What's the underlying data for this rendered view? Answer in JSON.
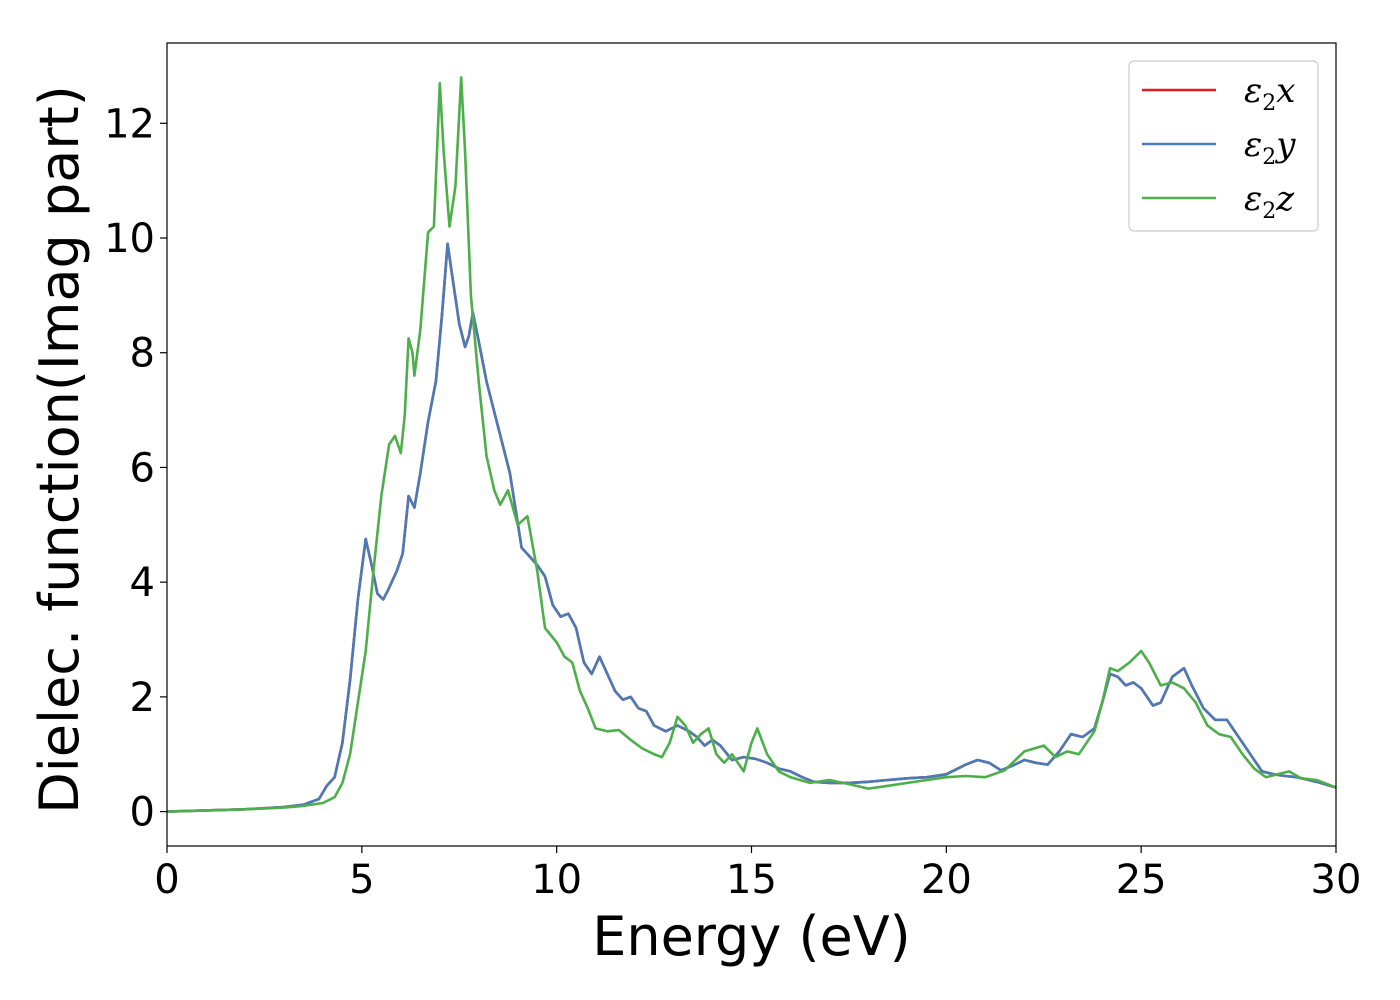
{
  "chart_data": {
    "type": "line",
    "xlabel": "Energy (eV)",
    "ylabel": "Dielec. function(Imag part)",
    "xlim": [
      0,
      30
    ],
    "ylim": [
      -0.6,
      13.4
    ],
    "xticks": [
      0,
      5,
      10,
      15,
      20,
      25,
      30
    ],
    "yticks": [
      0,
      2,
      4,
      6,
      8,
      10,
      12
    ],
    "grid": false,
    "legend_position": "top-right",
    "series": [
      {
        "name": "ε2x",
        "legend": {
          "symbol": "ε",
          "sub": "2",
          "var": "x"
        },
        "color": "#e41a1c",
        "points": [
          [
            0,
            0.0
          ],
          [
            1,
            0.02
          ],
          [
            2,
            0.04
          ],
          [
            3,
            0.08
          ],
          [
            3.5,
            0.12
          ],
          [
            3.9,
            0.22
          ],
          [
            4.1,
            0.45
          ],
          [
            4.3,
            0.6
          ],
          [
            4.5,
            1.2
          ],
          [
            4.7,
            2.3
          ],
          [
            4.9,
            3.7
          ],
          [
            5.1,
            4.75
          ],
          [
            5.25,
            4.3
          ],
          [
            5.4,
            3.8
          ],
          [
            5.55,
            3.7
          ],
          [
            5.7,
            3.9
          ],
          [
            5.9,
            4.2
          ],
          [
            6.05,
            4.5
          ],
          [
            6.2,
            5.5
          ],
          [
            6.35,
            5.3
          ],
          [
            6.5,
            5.9
          ],
          [
            6.7,
            6.8
          ],
          [
            6.9,
            7.5
          ],
          [
            7.05,
            8.6
          ],
          [
            7.2,
            9.9
          ],
          [
            7.35,
            9.2
          ],
          [
            7.5,
            8.5
          ],
          [
            7.65,
            8.1
          ],
          [
            7.75,
            8.3
          ],
          [
            7.85,
            8.7
          ],
          [
            8.0,
            8.2
          ],
          [
            8.2,
            7.5
          ],
          [
            8.5,
            6.7
          ],
          [
            8.8,
            5.9
          ],
          [
            9.1,
            4.6
          ],
          [
            9.3,
            4.45
          ],
          [
            9.5,
            4.3
          ],
          [
            9.7,
            4.1
          ],
          [
            9.9,
            3.6
          ],
          [
            10.1,
            3.4
          ],
          [
            10.3,
            3.45
          ],
          [
            10.5,
            3.2
          ],
          [
            10.7,
            2.6
          ],
          [
            10.9,
            2.4
          ],
          [
            11.1,
            2.7
          ],
          [
            11.3,
            2.4
          ],
          [
            11.5,
            2.1
          ],
          [
            11.7,
            1.95
          ],
          [
            11.9,
            2.0
          ],
          [
            12.1,
            1.8
          ],
          [
            12.3,
            1.75
          ],
          [
            12.5,
            1.5
          ],
          [
            12.8,
            1.4
          ],
          [
            13.1,
            1.5
          ],
          [
            13.4,
            1.4
          ],
          [
            13.6,
            1.3
          ],
          [
            13.8,
            1.15
          ],
          [
            14.0,
            1.25
          ],
          [
            14.2,
            1.15
          ],
          [
            14.5,
            0.9
          ],
          [
            14.8,
            0.95
          ],
          [
            15.1,
            0.92
          ],
          [
            15.4,
            0.85
          ],
          [
            15.7,
            0.75
          ],
          [
            16.0,
            0.7
          ],
          [
            16.3,
            0.6
          ],
          [
            16.6,
            0.52
          ],
          [
            17.0,
            0.5
          ],
          [
            17.5,
            0.5
          ],
          [
            18.0,
            0.52
          ],
          [
            18.5,
            0.55
          ],
          [
            19.0,
            0.58
          ],
          [
            19.5,
            0.6
          ],
          [
            20.0,
            0.65
          ],
          [
            20.5,
            0.82
          ],
          [
            20.8,
            0.9
          ],
          [
            21.1,
            0.85
          ],
          [
            21.4,
            0.72
          ],
          [
            21.7,
            0.8
          ],
          [
            22.0,
            0.9
          ],
          [
            22.3,
            0.85
          ],
          [
            22.6,
            0.82
          ],
          [
            22.9,
            1.05
          ],
          [
            23.2,
            1.35
          ],
          [
            23.5,
            1.3
          ],
          [
            23.8,
            1.45
          ],
          [
            24.0,
            1.9
          ],
          [
            24.2,
            2.4
          ],
          [
            24.4,
            2.35
          ],
          [
            24.6,
            2.2
          ],
          [
            24.8,
            2.25
          ],
          [
            25.0,
            2.15
          ],
          [
            25.3,
            1.85
          ],
          [
            25.5,
            1.9
          ],
          [
            25.8,
            2.35
          ],
          [
            26.1,
            2.5
          ],
          [
            26.3,
            2.2
          ],
          [
            26.6,
            1.8
          ],
          [
            26.9,
            1.6
          ],
          [
            27.2,
            1.6
          ],
          [
            27.5,
            1.3
          ],
          [
            27.8,
            1.0
          ],
          [
            28.1,
            0.7
          ],
          [
            28.4,
            0.65
          ],
          [
            28.7,
            0.62
          ],
          [
            29.0,
            0.6
          ],
          [
            29.5,
            0.52
          ],
          [
            30.0,
            0.42
          ]
        ]
      },
      {
        "name": "ε2y",
        "legend": {
          "symbol": "ε",
          "sub": "2",
          "var": "y"
        },
        "color": "#4a7bb7",
        "points": [
          [
            0,
            0.0
          ],
          [
            1,
            0.02
          ],
          [
            2,
            0.04
          ],
          [
            3,
            0.08
          ],
          [
            3.5,
            0.12
          ],
          [
            3.9,
            0.22
          ],
          [
            4.1,
            0.45
          ],
          [
            4.3,
            0.6
          ],
          [
            4.5,
            1.2
          ],
          [
            4.7,
            2.3
          ],
          [
            4.9,
            3.7
          ],
          [
            5.1,
            4.75
          ],
          [
            5.25,
            4.3
          ],
          [
            5.4,
            3.8
          ],
          [
            5.55,
            3.7
          ],
          [
            5.7,
            3.9
          ],
          [
            5.9,
            4.2
          ],
          [
            6.05,
            4.5
          ],
          [
            6.2,
            5.5
          ],
          [
            6.35,
            5.3
          ],
          [
            6.5,
            5.9
          ],
          [
            6.7,
            6.8
          ],
          [
            6.9,
            7.5
          ],
          [
            7.05,
            8.6
          ],
          [
            7.2,
            9.9
          ],
          [
            7.35,
            9.2
          ],
          [
            7.5,
            8.5
          ],
          [
            7.65,
            8.1
          ],
          [
            7.75,
            8.3
          ],
          [
            7.85,
            8.7
          ],
          [
            8.0,
            8.2
          ],
          [
            8.2,
            7.5
          ],
          [
            8.5,
            6.7
          ],
          [
            8.8,
            5.9
          ],
          [
            9.1,
            4.6
          ],
          [
            9.3,
            4.45
          ],
          [
            9.5,
            4.3
          ],
          [
            9.7,
            4.1
          ],
          [
            9.9,
            3.6
          ],
          [
            10.1,
            3.4
          ],
          [
            10.3,
            3.45
          ],
          [
            10.5,
            3.2
          ],
          [
            10.7,
            2.6
          ],
          [
            10.9,
            2.4
          ],
          [
            11.1,
            2.7
          ],
          [
            11.3,
            2.4
          ],
          [
            11.5,
            2.1
          ],
          [
            11.7,
            1.95
          ],
          [
            11.9,
            2.0
          ],
          [
            12.1,
            1.8
          ],
          [
            12.3,
            1.75
          ],
          [
            12.5,
            1.5
          ],
          [
            12.8,
            1.4
          ],
          [
            13.1,
            1.5
          ],
          [
            13.4,
            1.4
          ],
          [
            13.6,
            1.3
          ],
          [
            13.8,
            1.15
          ],
          [
            14.0,
            1.25
          ],
          [
            14.2,
            1.15
          ],
          [
            14.5,
            0.9
          ],
          [
            14.8,
            0.95
          ],
          [
            15.1,
            0.92
          ],
          [
            15.4,
            0.85
          ],
          [
            15.7,
            0.75
          ],
          [
            16.0,
            0.7
          ],
          [
            16.3,
            0.6
          ],
          [
            16.6,
            0.52
          ],
          [
            17.0,
            0.5
          ],
          [
            17.5,
            0.5
          ],
          [
            18.0,
            0.52
          ],
          [
            18.5,
            0.55
          ],
          [
            19.0,
            0.58
          ],
          [
            19.5,
            0.6
          ],
          [
            20.0,
            0.65
          ],
          [
            20.5,
            0.82
          ],
          [
            20.8,
            0.9
          ],
          [
            21.1,
            0.85
          ],
          [
            21.4,
            0.72
          ],
          [
            21.7,
            0.8
          ],
          [
            22.0,
            0.9
          ],
          [
            22.3,
            0.85
          ],
          [
            22.6,
            0.82
          ],
          [
            22.9,
            1.05
          ],
          [
            23.2,
            1.35
          ],
          [
            23.5,
            1.3
          ],
          [
            23.8,
            1.45
          ],
          [
            24.0,
            1.9
          ],
          [
            24.2,
            2.4
          ],
          [
            24.4,
            2.35
          ],
          [
            24.6,
            2.2
          ],
          [
            24.8,
            2.25
          ],
          [
            25.0,
            2.15
          ],
          [
            25.3,
            1.85
          ],
          [
            25.5,
            1.9
          ],
          [
            25.8,
            2.35
          ],
          [
            26.1,
            2.5
          ],
          [
            26.3,
            2.2
          ],
          [
            26.6,
            1.8
          ],
          [
            26.9,
            1.6
          ],
          [
            27.2,
            1.6
          ],
          [
            27.5,
            1.3
          ],
          [
            27.8,
            1.0
          ],
          [
            28.1,
            0.7
          ],
          [
            28.4,
            0.65
          ],
          [
            28.7,
            0.62
          ],
          [
            29.0,
            0.6
          ],
          [
            29.5,
            0.52
          ],
          [
            30.0,
            0.42
          ]
        ]
      },
      {
        "name": "ε2z",
        "legend": {
          "symbol": "ε",
          "sub": "2",
          "var": "z"
        },
        "color": "#4daf4a",
        "points": [
          [
            0,
            0.0
          ],
          [
            1,
            0.02
          ],
          [
            2,
            0.04
          ],
          [
            3,
            0.07
          ],
          [
            3.5,
            0.1
          ],
          [
            4.0,
            0.15
          ],
          [
            4.3,
            0.25
          ],
          [
            4.5,
            0.5
          ],
          [
            4.7,
            1.0
          ],
          [
            4.9,
            1.9
          ],
          [
            5.1,
            2.8
          ],
          [
            5.3,
            4.2
          ],
          [
            5.5,
            5.5
          ],
          [
            5.7,
            6.4
          ],
          [
            5.85,
            6.55
          ],
          [
            6.0,
            6.25
          ],
          [
            6.1,
            6.9
          ],
          [
            6.2,
            8.25
          ],
          [
            6.3,
            8.0
          ],
          [
            6.35,
            7.6
          ],
          [
            6.5,
            8.4
          ],
          [
            6.7,
            10.1
          ],
          [
            6.85,
            10.2
          ],
          [
            7.0,
            12.7
          ],
          [
            7.1,
            11.5
          ],
          [
            7.25,
            10.2
          ],
          [
            7.4,
            10.9
          ],
          [
            7.55,
            12.8
          ],
          [
            7.65,
            11.5
          ],
          [
            7.8,
            9.0
          ],
          [
            8.0,
            7.5
          ],
          [
            8.2,
            6.2
          ],
          [
            8.4,
            5.6
          ],
          [
            8.55,
            5.35
          ],
          [
            8.75,
            5.6
          ],
          [
            9.0,
            5.0
          ],
          [
            9.25,
            5.15
          ],
          [
            9.5,
            4.2
          ],
          [
            9.7,
            3.2
          ],
          [
            10.0,
            2.95
          ],
          [
            10.2,
            2.7
          ],
          [
            10.4,
            2.6
          ],
          [
            10.6,
            2.1
          ],
          [
            10.8,
            1.8
          ],
          [
            11.0,
            1.45
          ],
          [
            11.3,
            1.4
          ],
          [
            11.6,
            1.42
          ],
          [
            11.9,
            1.25
          ],
          [
            12.2,
            1.1
          ],
          [
            12.5,
            1.0
          ],
          [
            12.7,
            0.95
          ],
          [
            12.9,
            1.2
          ],
          [
            13.1,
            1.65
          ],
          [
            13.3,
            1.5
          ],
          [
            13.5,
            1.2
          ],
          [
            13.7,
            1.35
          ],
          [
            13.9,
            1.45
          ],
          [
            14.1,
            1.0
          ],
          [
            14.3,
            0.85
          ],
          [
            14.5,
            1.0
          ],
          [
            14.8,
            0.7
          ],
          [
            15.0,
            1.2
          ],
          [
            15.15,
            1.45
          ],
          [
            15.4,
            1.0
          ],
          [
            15.7,
            0.7
          ],
          [
            16.0,
            0.6
          ],
          [
            16.5,
            0.5
          ],
          [
            17.0,
            0.55
          ],
          [
            17.5,
            0.48
          ],
          [
            18.0,
            0.4
          ],
          [
            18.5,
            0.45
          ],
          [
            19.0,
            0.5
          ],
          [
            19.5,
            0.55
          ],
          [
            20.0,
            0.6
          ],
          [
            20.5,
            0.62
          ],
          [
            21.0,
            0.6
          ],
          [
            21.5,
            0.72
          ],
          [
            22.0,
            1.05
          ],
          [
            22.5,
            1.15
          ],
          [
            22.8,
            0.95
          ],
          [
            23.1,
            1.05
          ],
          [
            23.4,
            1.0
          ],
          [
            23.8,
            1.4
          ],
          [
            24.0,
            1.9
          ],
          [
            24.2,
            2.5
          ],
          [
            24.4,
            2.45
          ],
          [
            24.7,
            2.6
          ],
          [
            25.0,
            2.8
          ],
          [
            25.2,
            2.6
          ],
          [
            25.5,
            2.2
          ],
          [
            25.8,
            2.25
          ],
          [
            26.1,
            2.15
          ],
          [
            26.4,
            1.9
          ],
          [
            26.7,
            1.5
          ],
          [
            27.0,
            1.35
          ],
          [
            27.3,
            1.3
          ],
          [
            27.6,
            1.0
          ],
          [
            27.9,
            0.75
          ],
          [
            28.2,
            0.6
          ],
          [
            28.5,
            0.65
          ],
          [
            28.8,
            0.7
          ],
          [
            29.1,
            0.58
          ],
          [
            29.5,
            0.55
          ],
          [
            30.0,
            0.42
          ]
        ]
      }
    ]
  }
}
